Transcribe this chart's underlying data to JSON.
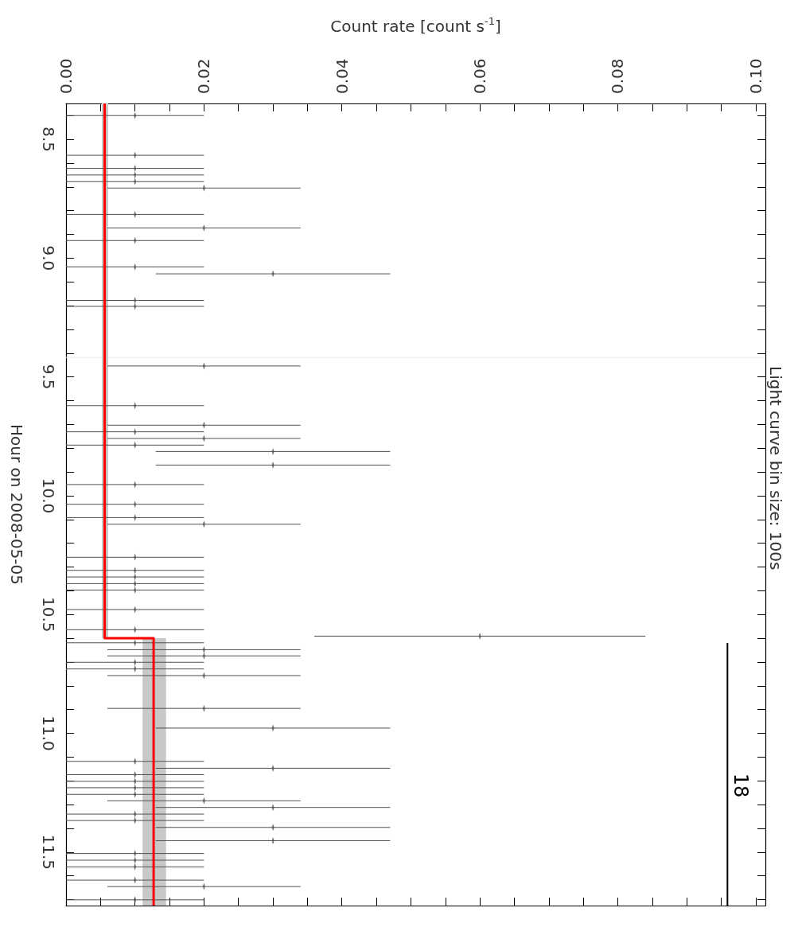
{
  "chart_data": {
    "type": "scatter",
    "orientation": "horizontal",
    "xlabel": "Count rate [count s$^{-1}$]",
    "ylabel": "Hour on 2008-05-05",
    "annotations": [
      "Light curve bin size: 100s"
    ],
    "xlim": [
      0,
      0.1014
    ],
    "xticks": [
      {
        "value": 0,
        "label": "0.00"
      },
      {
        "value": 0.005,
        "label": null
      },
      {
        "value": 0.01,
        "label": null
      },
      {
        "value": 0.015,
        "label": null
      },
      {
        "value": 0.02,
        "label": "0.02"
      },
      {
        "value": 0.025,
        "label": null
      },
      {
        "value": 0.03,
        "label": null
      },
      {
        "value": 0.035,
        "label": null
      },
      {
        "value": 0.04,
        "label": "0.04"
      },
      {
        "value": 0.045,
        "label": null
      },
      {
        "value": 0.05,
        "label": null
      },
      {
        "value": 0.055,
        "label": null
      },
      {
        "value": 0.06,
        "label": "0.06"
      },
      {
        "value": 0.065,
        "label": null
      },
      {
        "value": 0.07,
        "label": null
      },
      {
        "value": 0.075,
        "label": null
      },
      {
        "value": 0.08,
        "label": "0.08"
      },
      {
        "value": 0.085,
        "label": null
      },
      {
        "value": 0.09,
        "label": null
      },
      {
        "value": 0.095,
        "label": null
      },
      {
        "value": 0.1,
        "label": "0.10"
      }
    ],
    "ylim": [
      11.725,
      8.349
    ],
    "yticks": [
      {
        "value": 8.4,
        "label": null
      },
      8.5,
      {
        "value": 8.6,
        "label": null
      },
      {
        "value": 8.7,
        "label": null
      },
      {
        "value": 8.8,
        "label": null
      },
      {
        "value": 8.9,
        "label": null
      },
      {
        "value": 9,
        "label": "9.0"
      },
      {
        "value": 9.1,
        "label": null
      },
      {
        "value": 9.2,
        "label": null
      },
      {
        "value": 9.3,
        "label": null
      },
      {
        "value": 9.4,
        "label": null
      },
      9.5,
      {
        "value": 9.6,
        "label": null
      },
      {
        "value": 9.7,
        "label": null
      },
      {
        "value": 9.8,
        "label": null
      },
      {
        "value": 9.9,
        "label": null
      },
      {
        "value": 10,
        "label": "10.0"
      },
      {
        "value": 10.1,
        "label": null
      },
      {
        "value": 10.2,
        "label": null
      },
      {
        "value": 10.3,
        "label": null
      },
      {
        "value": 10.4,
        "label": null
      },
      10.5,
      {
        "value": 10.6,
        "label": null
      },
      {
        "value": 10.7,
        "label": null
      },
      {
        "value": 10.8,
        "label": null
      },
      {
        "value": 10.9,
        "label": null
      },
      {
        "value": 11,
        "label": "11.0"
      },
      {
        "value": 11.1,
        "label": null
      },
      {
        "value": 11.2,
        "label": null
      },
      {
        "value": 11.3,
        "label": null
      },
      {
        "value": 11.4,
        "label": null
      },
      11.5,
      {
        "value": 11.6,
        "label": null
      },
      {
        "value": 11.7,
        "label": null
      }
    ],
    "ref_lines": [
      {
        "axis": "y",
        "value": 9.418,
        "color": "#eeeeee"
      }
    ],
    "series": [
      {
        "color": "#505050",
        "x": [
          8.4,
          8.567,
          8.622,
          8.65,
          8.678,
          8.705,
          8.816,
          8.873,
          8.926,
          9.037,
          9.066,
          9.178,
          9.203,
          9.454,
          9.621,
          9.703,
          9.731,
          9.759,
          9.787,
          9.814,
          9.871,
          9.953,
          10.036,
          10.092,
          10.12,
          10.259,
          10.314,
          10.342,
          10.37,
          10.397,
          10.479,
          10.564,
          10.591,
          10.619,
          10.648,
          10.674,
          10.701,
          10.729,
          10.757,
          10.895,
          10.978,
          11.118,
          11.147,
          11.174,
          11.202,
          11.229,
          11.257,
          11.284,
          11.312,
          11.34,
          11.367,
          11.396,
          11.452,
          11.506,
          11.534,
          11.562,
          11.618,
          11.645,
          11.701
        ],
        "values": [
          0.01,
          0.01,
          0.01,
          0.01,
          0.01,
          0.02,
          0.01,
          0.02,
          0.01,
          0.01,
          0.03,
          0.01,
          0.01,
          0.02,
          0.01,
          0.02,
          0.01,
          0.02,
          0.01,
          0.03,
          0.03,
          0.01,
          0.01,
          0.01,
          0.02,
          0.01,
          0.01,
          0.01,
          0.01,
          0.01,
          0.01,
          0.01,
          0.06,
          0.01,
          0.02,
          0.02,
          0.01,
          0.01,
          0.02,
          0.02,
          0.03,
          0.01,
          0.03,
          0.01,
          0.01,
          0.01,
          0.01,
          0.02,
          0.03,
          0.01,
          0.01,
          0.03,
          0.03,
          0.01,
          0.01,
          0.01,
          0.01,
          0.02,
          0.01
        ],
        "errors": [
          0.01,
          0.01,
          0.01,
          0.01,
          0.01,
          0.014,
          0.01,
          0.014,
          0.01,
          0.01,
          0.017,
          0.01,
          0.01,
          0.014,
          0.01,
          0.014,
          0.01,
          0.014,
          0.01,
          0.017,
          0.017,
          0.01,
          0.01,
          0.01,
          0.014,
          0.01,
          0.01,
          0.01,
          0.01,
          0.01,
          0.01,
          0.01,
          0.024,
          0.01,
          0.014,
          0.014,
          0.01,
          0.01,
          0.014,
          0.014,
          0.017,
          0.01,
          0.017,
          0.01,
          0.01,
          0.01,
          0.01,
          0.014,
          0.017,
          0.01,
          0.01,
          0.017,
          0.017,
          0.01,
          0.01,
          0.01,
          0.01,
          0.014,
          0.01
        ]
      },
      {
        "type": "step",
        "color": "#ff0000",
        "x": [
          8.349,
          10.6,
          11.725
        ],
        "values": [
          0.0056,
          0.0127,
          0.0127
        ],
        "lower": [
          0.0052,
          0.0111,
          0.0111
        ],
        "upper": [
          0.0061,
          0.0145,
          0.0145
        ]
      },
      {
        "type": "line",
        "name": "18",
        "color": "#000000",
        "x": [
          10.62,
          11.725
        ],
        "values": [
          0.0959,
          0.0959
        ]
      }
    ]
  }
}
